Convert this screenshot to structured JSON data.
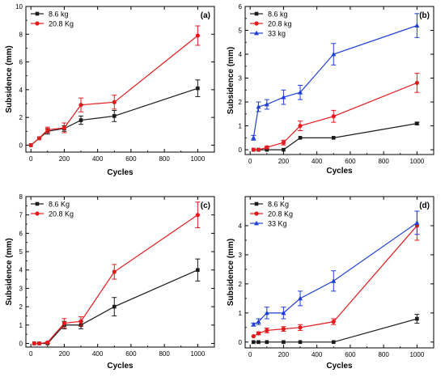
{
  "colors": {
    "black": "#1a1a1a",
    "red": "#e41a1c",
    "blue": "#1f3fd6"
  },
  "chart_data": [
    {
      "panel": "(a)",
      "type": "line",
      "xlabel": "Cycles",
      "ylabel": "Subsidence (mm)",
      "xlim": [
        -30,
        1100
      ],
      "ylim": [
        -0.5,
        10
      ],
      "xticks": [
        0,
        200,
        400,
        600,
        800,
        1000
      ],
      "yticks": [
        0,
        2,
        4,
        6,
        8,
        10
      ],
      "legend_position": "top-left",
      "series": [
        {
          "name": "8.6 kg",
          "color": "black",
          "marker": "square",
          "x": [
            0,
            50,
            100,
            200,
            300,
            500,
            1000
          ],
          "y": [
            0,
            0.5,
            1.0,
            1.2,
            1.8,
            2.1,
            4.1
          ],
          "err": [
            0,
            0,
            0.2,
            0.2,
            0.3,
            0.4,
            0.6
          ]
        },
        {
          "name": "20.8 Kg",
          "color": "red",
          "marker": "circle",
          "x": [
            0,
            50,
            100,
            200,
            300,
            500,
            1000
          ],
          "y": [
            0,
            0.5,
            1.1,
            1.25,
            2.9,
            3.1,
            7.9
          ],
          "err": [
            0,
            0,
            0.2,
            0.35,
            0.5,
            0.5,
            0.7
          ]
        }
      ]
    },
    {
      "panel": "(b)",
      "type": "line",
      "xlabel": "Cycles",
      "ylabel": "Subsidence (mm)",
      "xlim": [
        -30,
        1100
      ],
      "ylim": [
        -0.2,
        6
      ],
      "xticks": [
        0,
        200,
        400,
        600,
        800,
        1000
      ],
      "yticks": [
        0,
        1,
        2,
        3,
        4,
        5,
        6
      ],
      "legend_position": "top-left",
      "series": [
        {
          "name": "8.6 kg",
          "color": "black",
          "marker": "square",
          "x": [
            20,
            50,
            100,
            200,
            300,
            500,
            1000
          ],
          "y": [
            0,
            0,
            0,
            0,
            0.5,
            0.5,
            1.1
          ],
          "err": [
            0,
            0,
            0,
            0,
            0,
            0,
            0.05
          ]
        },
        {
          "name": "20.8 kg",
          "color": "red",
          "marker": "circle",
          "x": [
            20,
            50,
            100,
            200,
            300,
            500,
            1000
          ],
          "y": [
            0,
            0,
            0.1,
            0.3,
            1.0,
            1.4,
            2.8
          ],
          "err": [
            0,
            0,
            0.05,
            0.1,
            0.2,
            0.25,
            0.4
          ]
        },
        {
          "name": "33 kg",
          "color": "blue",
          "marker": "triangle",
          "x": [
            20,
            50,
            100,
            200,
            300,
            500,
            1000
          ],
          "y": [
            0.5,
            1.8,
            1.9,
            2.2,
            2.4,
            4.0,
            5.2
          ],
          "err": [
            0.1,
            0.2,
            0.2,
            0.3,
            0.3,
            0.45,
            0.5
          ]
        }
      ]
    },
    {
      "panel": "(c)",
      "type": "line",
      "xlabel": "Cycles",
      "ylabel": "Subsidence (mm)",
      "xlim": [
        -30,
        1100
      ],
      "ylim": [
        -0.2,
        8
      ],
      "xticks": [
        0,
        200,
        400,
        600,
        800,
        1000
      ],
      "yticks": [
        0,
        1,
        2,
        3,
        4,
        5,
        6,
        7,
        8
      ],
      "legend_position": "top-left",
      "series": [
        {
          "name": "8.6 Kg",
          "color": "black",
          "marker": "square",
          "x": [
            20,
            50,
            100,
            200,
            300,
            500,
            1000
          ],
          "y": [
            0,
            0,
            0,
            1.0,
            1.0,
            2.0,
            4.0
          ],
          "err": [
            0,
            0,
            0,
            0.2,
            0.2,
            0.5,
            0.6
          ]
        },
        {
          "name": "20.8 Kg",
          "color": "red",
          "marker": "circle",
          "x": [
            20,
            50,
            100,
            200,
            300,
            500,
            1000
          ],
          "y": [
            0,
            0,
            0.05,
            1.1,
            1.2,
            3.9,
            7.0
          ],
          "err": [
            0,
            0,
            0.05,
            0.25,
            0.25,
            0.4,
            0.7
          ]
        }
      ]
    },
    {
      "panel": "(d)",
      "type": "line",
      "xlabel": "Cycles",
      "ylabel": "Subsidence (mm)",
      "xlim": [
        -30,
        1100
      ],
      "ylim": [
        -0.2,
        5
      ],
      "xticks": [
        0,
        200,
        400,
        600,
        800,
        1000
      ],
      "yticks": [
        0,
        1,
        2,
        3,
        4
      ],
      "legend_position": "top-left",
      "series": [
        {
          "name": "8.6 Kg",
          "color": "black",
          "marker": "square",
          "x": [
            20,
            50,
            100,
            200,
            300,
            500,
            1000
          ],
          "y": [
            0,
            0,
            0,
            0,
            0,
            0,
            0.8
          ],
          "err": [
            0,
            0,
            0,
            0,
            0,
            0,
            0.15
          ]
        },
        {
          "name": "20.8 Kg",
          "color": "red",
          "marker": "circle",
          "x": [
            20,
            50,
            100,
            200,
            300,
            500,
            1000
          ],
          "y": [
            0.2,
            0.3,
            0.4,
            0.45,
            0.5,
            0.7,
            4.0
          ],
          "err": [
            0,
            0.05,
            0.08,
            0.08,
            0.1,
            0.1,
            0.5
          ]
        },
        {
          "name": "33 Kg",
          "color": "blue",
          "marker": "triangle",
          "x": [
            20,
            50,
            100,
            200,
            300,
            500,
            1000
          ],
          "y": [
            0.6,
            0.7,
            1.0,
            1.0,
            1.5,
            2.1,
            4.1
          ],
          "err": [
            0.05,
            0.1,
            0.2,
            0.2,
            0.25,
            0.35,
            0.4
          ]
        }
      ]
    }
  ]
}
